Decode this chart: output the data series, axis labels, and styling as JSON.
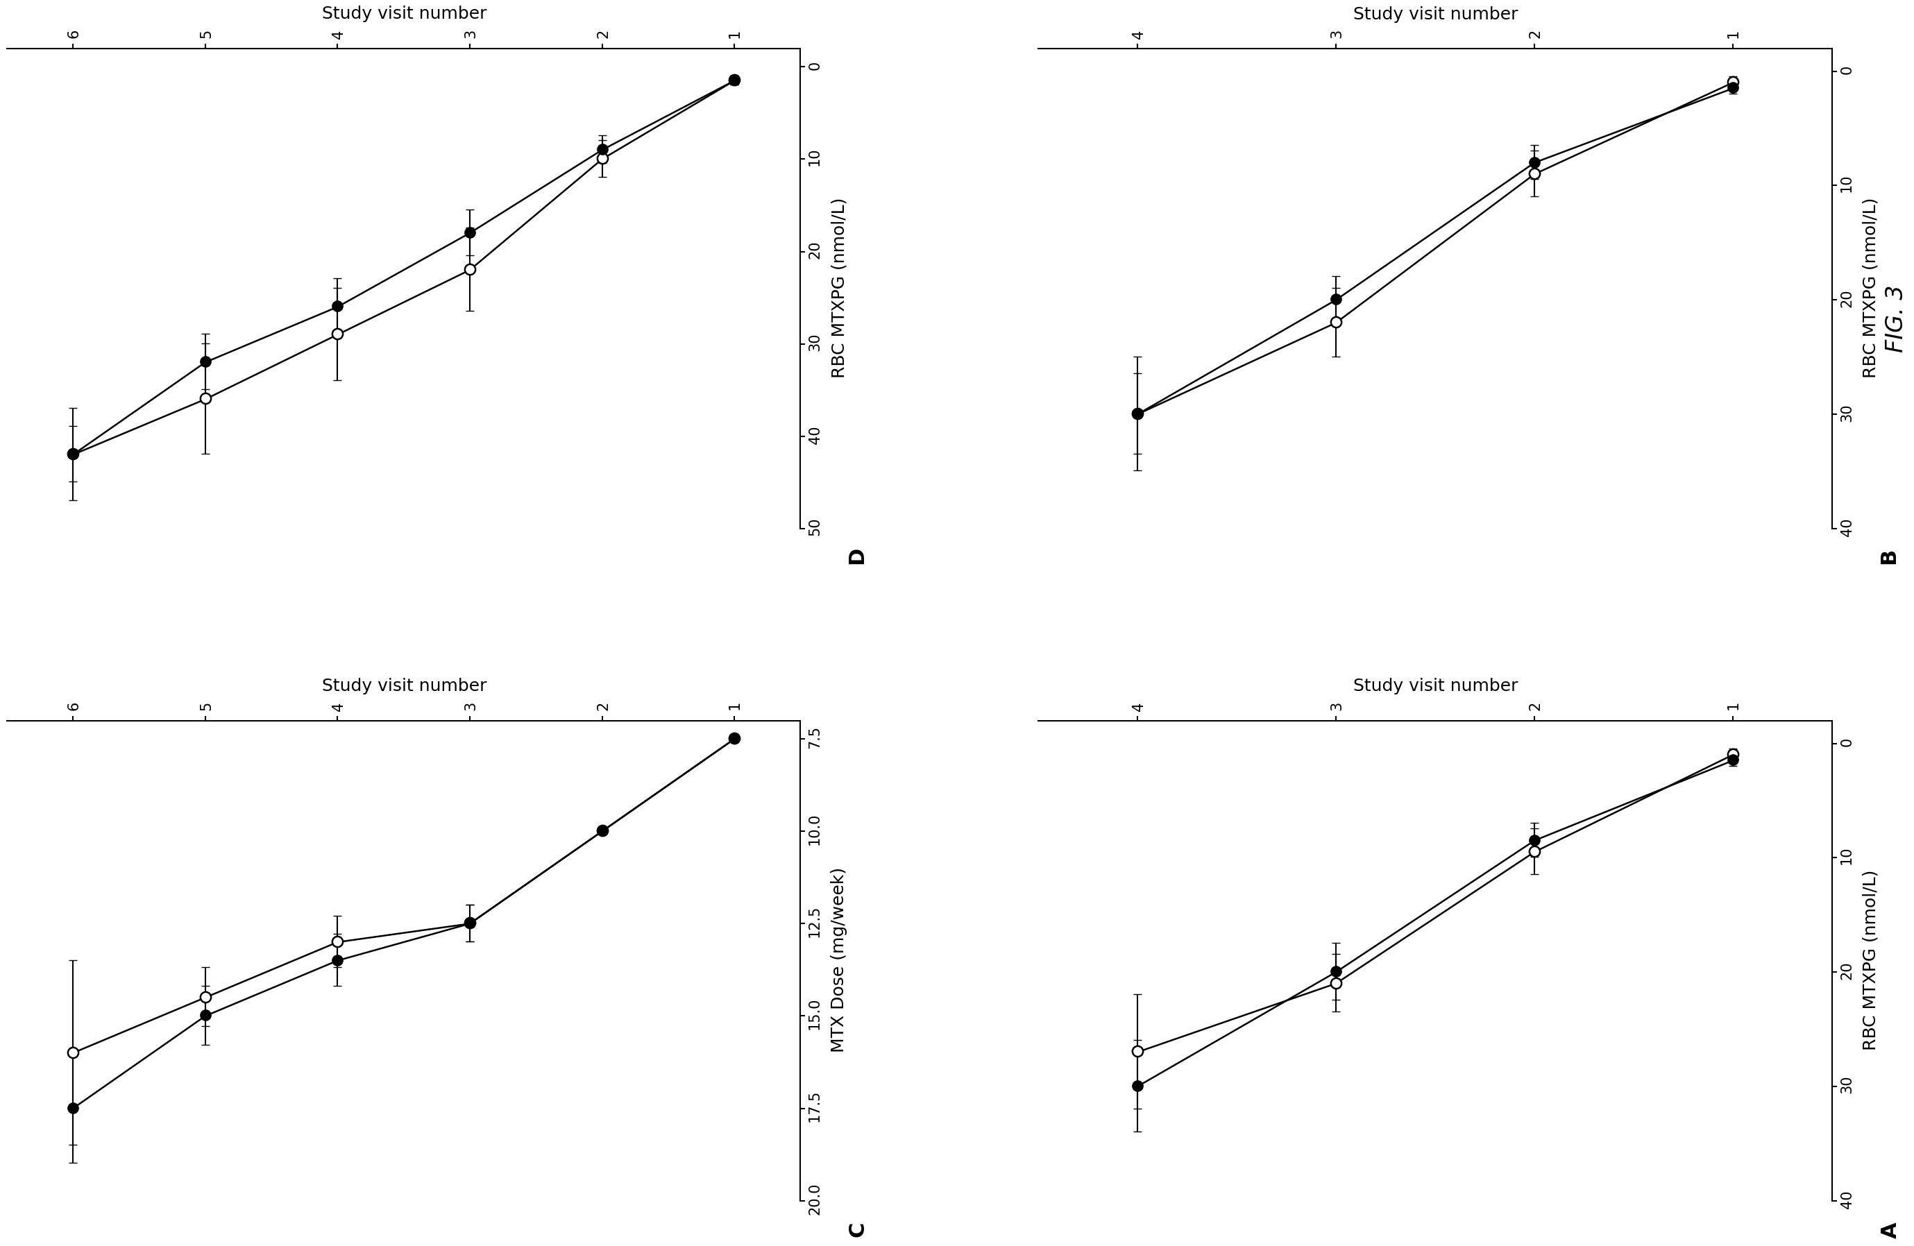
{
  "fig_label": "FIG. 3",
  "panel_A": {
    "label": "A",
    "xlabel": "RBC MTXPG (nmol/L)",
    "ylabel": "Study visit number",
    "xlim": [
      40,
      -2
    ],
    "ylim": [
      0.5,
      4.5
    ],
    "xticks": [
      40,
      30,
      20,
      10,
      0
    ],
    "yticks": [
      1,
      2,
      3,
      4
    ],
    "filled": {
      "x": [
        1.5,
        8.5,
        20,
        30
      ],
      "y": [
        1,
        2,
        3,
        4
      ],
      "xerr": [
        0.5,
        1.5,
        2.5,
        4.0
      ]
    },
    "open": {
      "x": [
        1.0,
        9.5,
        21,
        27
      ],
      "y": [
        1,
        2,
        3,
        4
      ],
      "xerr": [
        0.5,
        2.0,
        2.5,
        5.0
      ]
    }
  },
  "panel_B": {
    "label": "B",
    "xlabel": "RBC MTXPG (nmol/L)",
    "ylabel": "Study visit number",
    "xlim": [
      40,
      -2
    ],
    "ylim": [
      0.5,
      4.5
    ],
    "xticks": [
      40,
      30,
      20,
      10,
      0
    ],
    "yticks": [
      1,
      2,
      3,
      4
    ],
    "filled": {
      "x": [
        1.5,
        8.0,
        20,
        30
      ],
      "y": [
        1,
        2,
        3,
        4
      ],
      "xerr": [
        0.5,
        1.5,
        2.0,
        3.5
      ]
    },
    "open": {
      "x": [
        1.0,
        9.0,
        22,
        30
      ],
      "y": [
        1,
        2,
        3,
        4
      ],
      "xerr": [
        0.5,
        2.0,
        3.0,
        5.0
      ]
    }
  },
  "panel_C": {
    "label": "C",
    "xlabel": "MTX Dose (mg/week)",
    "ylabel": "Study visit number",
    "xlim": [
      20,
      7
    ],
    "ylim": [
      0.5,
      6.5
    ],
    "xticks": [
      20,
      17.5,
      15,
      12.5,
      10,
      7.5
    ],
    "yticks": [
      1,
      2,
      3,
      4,
      5,
      6
    ],
    "filled": {
      "x": [
        7.5,
        10,
        12.5,
        13.5,
        15.0,
        17.5
      ],
      "y": [
        1,
        2,
        3,
        4,
        5,
        6
      ],
      "xerr": [
        0.0,
        0.0,
        0.5,
        0.7,
        0.8,
        1.5
      ]
    },
    "open": {
      "x": [
        7.5,
        10,
        12.5,
        13.0,
        14.5,
        16.0
      ],
      "y": [
        1,
        2,
        3,
        4,
        5,
        6
      ],
      "xerr": [
        0.0,
        0.0,
        0.5,
        0.7,
        0.8,
        2.5
      ]
    }
  },
  "panel_D": {
    "label": "D",
    "xlabel": "RBC MTXPG (nmol/L)",
    "ylabel": "Study visit number",
    "xlim": [
      50,
      -2
    ],
    "ylim": [
      0.5,
      6.5
    ],
    "xticks": [
      50,
      40,
      30,
      20,
      10,
      0
    ],
    "yticks": [
      1,
      2,
      3,
      4,
      5,
      6
    ],
    "filled": {
      "x": [
        1.5,
        9.0,
        18.0,
        26.0,
        32.0,
        42.0
      ],
      "y": [
        1,
        2,
        3,
        4,
        5,
        6
      ],
      "xerr": [
        0.5,
        1.5,
        2.5,
        3.0,
        3.0,
        3.0
      ]
    },
    "open": {
      "x": [
        1.5,
        10.0,
        22.0,
        29.0,
        36.0,
        42.0
      ],
      "y": [
        1,
        2,
        3,
        4,
        5,
        6
      ],
      "xerr": [
        0.5,
        2.0,
        4.5,
        5.0,
        6.0,
        5.0
      ]
    }
  }
}
